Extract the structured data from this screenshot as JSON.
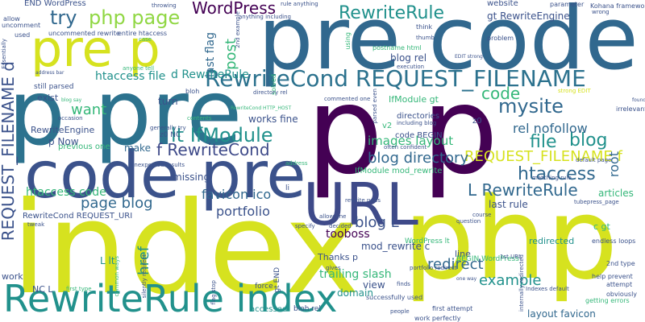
{
  "palette": {
    "purple": "#440154",
    "darkblue": "#3b528b",
    "blue": "#31688e",
    "teal": "#21918c",
    "green": "#35b779",
    "lime": "#90d743",
    "yellow": "#d6e21f",
    "slate": "#3e4a89"
  },
  "words": [
    {
      "text": "index",
      "color": "#d6e21f"
    },
    {
      "text": "php",
      "color": "#d6e21f"
    },
    {
      "text": "pre code",
      "color": "#31688e"
    },
    {
      "text": "p pre",
      "color": "#2c728e"
    },
    {
      "text": "p p",
      "color": "#440154"
    },
    {
      "text": "code pre",
      "color": "#3b528b"
    },
    {
      "text": "URL",
      "color": "#3e4a89"
    },
    {
      "text": "RewriteRule index",
      "color": "#21918c"
    },
    {
      "text": "pre p",
      "color": "#d6e21f"
    },
    {
      "text": "RewriteCond REQUEST_FILENAME",
      "color": "#2c728e"
    },
    {
      "text": "REQUEST_FILENAME d",
      "color": "#3b528b"
    },
    {
      "text": "RewriteRule",
      "color": "#21918c"
    },
    {
      "text": "WordPress",
      "color": "#440154"
    },
    {
      "text": "php page",
      "color": "#90d743"
    },
    {
      "text": "try",
      "color": "#31688e"
    },
    {
      "text": "mysite",
      "color": "#31688e"
    },
    {
      "text": "code",
      "color": "#35b779"
    },
    {
      "text": "lt IfModule",
      "color": "#21918c"
    },
    {
      "text": "f RewriteCond",
      "color": "#3e4a89"
    },
    {
      "text": "REQUEST_FILENAME f",
      "color": "#d6e21f"
    },
    {
      "text": "file",
      "color": "#21918c"
    },
    {
      "text": "blog",
      "color": "#21918c"
    },
    {
      "text": "rel nofollow",
      "color": "#31688e"
    },
    {
      "text": "htaccess",
      "color": "#31688e"
    },
    {
      "text": "L RewriteRule",
      "color": "#31688e"
    },
    {
      "text": "blog directory",
      "color": "#31688e"
    },
    {
      "text": "images layout",
      "color": "#35b779"
    },
    {
      "text": "favicon ico",
      "color": "#31688e"
    },
    {
      "text": "htaccess code",
      "color": "#35b779"
    },
    {
      "text": "page blog",
      "color": "#31688e"
    },
    {
      "text": "portfolio",
      "color": "#3b528b"
    },
    {
      "text": "blog L",
      "color": "#3b528b"
    },
    {
      "text": "redirect",
      "color": "#31688e"
    },
    {
      "text": "example",
      "color": "#21918c"
    },
    {
      "text": "want",
      "color": "#35b779"
    },
    {
      "text": "post",
      "color": "#35b779"
    },
    {
      "text": "last flag",
      "color": "#31688e"
    },
    {
      "text": "htaccess file",
      "color": "#21918c"
    },
    {
      "text": "d RewriteRule",
      "color": "#21918c"
    },
    {
      "text": "p Now",
      "color": "#3b528b"
    },
    {
      "text": "RewriteEngine",
      "color": "#3b528b"
    },
    {
      "text": "href",
      "color": "#21918c"
    },
    {
      "text": "root",
      "color": "#31688e"
    },
    {
      "text": "articles",
      "color": "#35b779"
    },
    {
      "text": "tooboss",
      "color": "#440154"
    },
    {
      "text": "mod_rewrite c",
      "color": "#3b528b"
    },
    {
      "text": "view",
      "color": "#3b528b"
    },
    {
      "text": "domain",
      "color": "#21918c"
    },
    {
      "text": "trailing slash",
      "color": "#35b779"
    },
    {
      "text": "layout favicon",
      "color": "#31688e"
    },
    {
      "text": "line",
      "color": "#3b528b"
    },
    {
      "text": "last rule",
      "color": "#3b528b"
    },
    {
      "text": "L lt",
      "color": "#21918c"
    },
    {
      "text": "NC L",
      "color": "#3b528b"
    },
    {
      "text": "work",
      "color": "#3b528b"
    },
    {
      "text": "make",
      "color": "#31688e"
    },
    {
      "text": "missing",
      "color": "#3b528b"
    },
    {
      "text": "turn",
      "color": "#3b528b"
    },
    {
      "text": "exist",
      "color": "#3b528b"
    },
    {
      "text": "works fine",
      "color": "#3b528b"
    },
    {
      "text": "blog rel",
      "color": "#3b528b"
    },
    {
      "text": "gt RewriteEngine",
      "color": "#3b528b"
    },
    {
      "text": "RewriteCond REQUEST_URI",
      "color": "#3b528b"
    },
    {
      "text": "redirected",
      "color": "#21918c"
    },
    {
      "text": "c gt",
      "color": "#35b779"
    },
    {
      "text": "END WordPress",
      "color": "#3b528b"
    },
    {
      "text": "website",
      "color": "#3b528b"
    },
    {
      "text": "still parsed",
      "color": "#3b528b"
    },
    {
      "text": "previous one",
      "color": "#35b779"
    },
    {
      "text": "directories",
      "color": "#3b528b"
    },
    {
      "text": "BEGIN WordPress",
      "color": "#35b779"
    },
    {
      "text": "Thanks p",
      "color": "#3b528b"
    },
    {
      "text": "v2",
      "color": "#35b779"
    },
    {
      "text": "code BEGIN",
      "color": "#3b528b"
    },
    {
      "text": "IfModule mod_rewrite",
      "color": "#35b779"
    },
    {
      "text": "IfModule gt",
      "color": "#35b779"
    },
    {
      "text": "uncommented rewrite",
      "color": "#3b528b"
    },
    {
      "text": "entire htaccess",
      "color": "#3b528b"
    },
    {
      "text": "successfully used",
      "color": "#3b528b"
    },
    {
      "text": "first attempt",
      "color": "#3b528b"
    },
    {
      "text": "work perfectly",
      "color": "#3b528b"
    },
    {
      "text": "getting errors",
      "color": "#35b779"
    },
    {
      "text": "endless loops",
      "color": "#3b528b"
    },
    {
      "text": "help prevent",
      "color": "#3b528b"
    },
    {
      "text": "2nd type",
      "color": "#3b528b"
    },
    {
      "text": "attempt",
      "color": "#3b528b"
    },
    {
      "text": "obviously",
      "color": "#3b528b"
    },
    {
      "text": "postname html",
      "color": "#35b779"
    },
    {
      "text": "Kohana framework",
      "color": "#3b528b"
    },
    {
      "text": "parameter",
      "color": "#3b528b"
    },
    {
      "text": "problem",
      "color": "#3b528b"
    },
    {
      "text": "irrelevant",
      "color": "#3b528b"
    },
    {
      "text": "allow",
      "color": "#3b528b"
    },
    {
      "text": "uncomment",
      "color": "#3b528b"
    },
    {
      "text": "used",
      "color": "#3b528b"
    },
    {
      "text": "anything including",
      "color": "#3b528b"
    },
    {
      "text": "rule anything",
      "color": "#3b528b"
    },
    {
      "text": "throwing",
      "color": "#3b528b"
    },
    {
      "text": "occasion",
      "color": "#3b528b"
    },
    {
      "text": "generally try",
      "color": "#3b528b"
    },
    {
      "text": "think",
      "color": "#3b528b"
    },
    {
      "text": "including blog",
      "color": "#3b528b"
    },
    {
      "text": "often confident",
      "color": "#3b528b"
    },
    {
      "text": "execution",
      "color": "#3b528b"
    },
    {
      "text": "question",
      "color": "#3b528b"
    },
    {
      "text": "course",
      "color": "#3b528b"
    },
    {
      "text": "1st URL",
      "color": "#3b528b"
    },
    {
      "text": "accessed",
      "color": "#21918c"
    },
    {
      "text": "force",
      "color": "#3b528b"
    },
    {
      "text": "bloh rel",
      "color": "#3b528b"
    },
    {
      "text": "finds",
      "color": "#3b528b"
    },
    {
      "text": "people",
      "color": "#3b528b"
    },
    {
      "text": "WordPress lt",
      "color": "#35b779"
    },
    {
      "text": "decided",
      "color": "#3b528b"
    },
    {
      "text": "specify",
      "color": "#3b528b"
    },
    {
      "text": "gives",
      "color": "#3b528b"
    },
    {
      "text": "gt END",
      "color": "#3b528b"
    },
    {
      "text": "rewrite rules",
      "color": "#3b528b"
    },
    {
      "text": "tweak",
      "color": "#3b528b"
    },
    {
      "text": "contents",
      "color": "#35b779"
    },
    {
      "text": "anyone tell",
      "color": "#35b779"
    },
    {
      "text": "address",
      "color": "#35b779"
    },
    {
      "text": "li",
      "color": "#3b528b"
    },
    {
      "text": "z0",
      "color": "#3b528b"
    },
    {
      "text": "z0 NC",
      "color": "#3b528b"
    },
    {
      "text": "common ways",
      "color": "#35b779"
    },
    {
      "text": "silently redirect",
      "color": "#3b528b"
    },
    {
      "text": "first type",
      "color": "#35b779"
    },
    {
      "text": "flag stop",
      "color": "#3b528b"
    },
    {
      "text": "matching rule",
      "color": "#3b528b"
    },
    {
      "text": "default page",
      "color": "#3b528b"
    },
    {
      "text": "internally redirected",
      "color": "#3b528b"
    },
    {
      "text": "using",
      "color": "#35b779"
    },
    {
      "text": "solved",
      "color": "#35b779"
    },
    {
      "text": "thumb",
      "color": "#3b528b"
    },
    {
      "text": "wrong",
      "color": "#3b528b"
    },
    {
      "text": "found",
      "color": "#3b528b"
    },
    {
      "text": "Essentially",
      "color": "#3b528b"
    },
    {
      "text": "RewriteCond HTTP_HOST",
      "color": "#35b779"
    },
    {
      "text": "unexpected results",
      "color": "#3b528b"
    },
    {
      "text": "EDIT strong",
      "color": "#3b528b"
    },
    {
      "text": "blog say",
      "color": "#35b779"
    },
    {
      "text": "parsed even",
      "color": "#3b528b"
    },
    {
      "text": "portfolio redirect",
      "color": "#3b528b"
    },
    {
      "text": "allow one",
      "color": "#3b528b"
    },
    {
      "text": "one way",
      "color": "#3b528b"
    },
    {
      "text": "tubepress_page",
      "color": "#3b528b"
    },
    {
      "text": "Indexes default",
      "color": "#3b528b"
    },
    {
      "text": "strong EDIT",
      "color": "#d6e21f"
    },
    {
      "text": "2nd example",
      "color": "#3b528b"
    },
    {
      "text": "commented one",
      "color": "#3b528b"
    },
    {
      "text": "directory rel",
      "color": "#3b528b"
    },
    {
      "text": "address bar",
      "color": "#3b528b"
    },
    {
      "text": "case",
      "color": "#35b779"
    },
    {
      "text": "bloh",
      "color": "#3b528b"
    }
  ]
}
